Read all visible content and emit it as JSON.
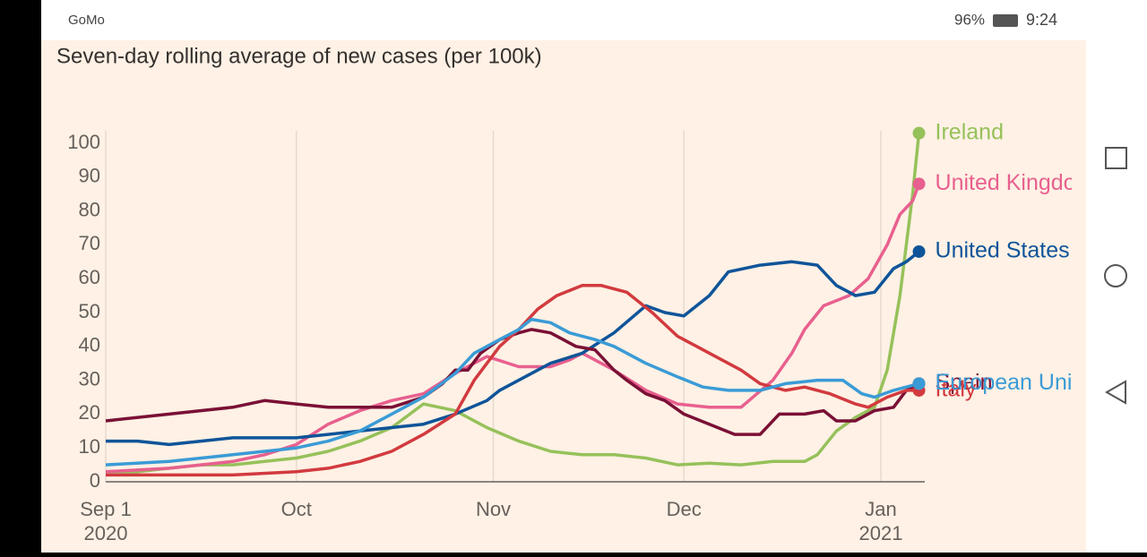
{
  "status_bar": {
    "carrier": "GoMo",
    "battery": "96%",
    "time": "9:24"
  },
  "chart_data": {
    "type": "line",
    "title": "Seven-day rolling average of new cases (per 100k)",
    "xlim": [
      0,
      128
    ],
    "xticks": [
      {
        "value": 0,
        "label": [
          "Sep 1",
          "2020"
        ]
      },
      {
        "value": 30,
        "label": [
          "Oct"
        ]
      },
      {
        "value": 61,
        "label": [
          "Nov"
        ]
      },
      {
        "value": 91,
        "label": [
          "Dec"
        ]
      },
      {
        "value": 122,
        "label": [
          "Jan",
          "2021"
        ]
      }
    ],
    "ylim": [
      0,
      100
    ],
    "yticks": [
      0,
      10,
      20,
      30,
      40,
      50,
      60,
      70,
      80,
      90,
      100
    ],
    "grid": true,
    "series": [
      {
        "name": "Ireland",
        "color": "#96c15a",
        "x": [
          0,
          5,
          10,
          15,
          20,
          25,
          30,
          35,
          40,
          45,
          50,
          55,
          60,
          65,
          70,
          75,
          80,
          85,
          90,
          95,
          100,
          105,
          110,
          112,
          115,
          118,
          121,
          123,
          125,
          127,
          128
        ],
        "values": [
          3,
          3,
          4,
          5,
          5,
          6,
          7,
          9,
          12,
          16,
          23,
          21,
          16,
          12,
          9,
          8,
          8,
          7,
          5,
          5.5,
          5,
          6,
          6,
          8,
          15,
          19,
          22,
          33,
          55,
          85,
          103
        ]
      },
      {
        "name": "United Kingdom",
        "color": "#e8608f",
        "x": [
          0,
          10,
          15,
          20,
          25,
          30,
          35,
          40,
          45,
          50,
          55,
          60,
          65,
          70,
          73,
          75,
          78,
          80,
          85,
          90,
          95,
          100,
          105,
          108,
          110,
          113,
          117,
          120,
          123,
          125,
          127,
          128
        ],
        "values": [
          3,
          4,
          5,
          6,
          8,
          11,
          17,
          21,
          24,
          26,
          32,
          37,
          34,
          34,
          36,
          38,
          35,
          33,
          27,
          23,
          22,
          22,
          30,
          38,
          45,
          52,
          55,
          60,
          70,
          79,
          83,
          88
        ]
      },
      {
        "name": "United States",
        "color": "#0f5499",
        "x": [
          0,
          5,
          10,
          15,
          20,
          25,
          30,
          35,
          40,
          45,
          50,
          55,
          60,
          62,
          65,
          70,
          75,
          80,
          85,
          88,
          91,
          95,
          98,
          103,
          108,
          112,
          115,
          118,
          121,
          124,
          126,
          128
        ],
        "values": [
          12,
          12,
          11,
          12,
          13,
          13,
          13,
          14,
          15,
          16,
          17,
          20,
          24,
          27,
          30,
          35,
          38,
          44,
          52,
          50,
          49,
          55,
          62,
          64,
          65,
          64,
          58,
          55,
          56,
          63,
          65,
          68
        ]
      },
      {
        "name": "Spain",
        "color": "#7a1036",
        "x": [
          0,
          10,
          20,
          25,
          30,
          35,
          40,
          45,
          50,
          53,
          55,
          57,
          59,
          62,
          65,
          67,
          70,
          72,
          74,
          77,
          80,
          82,
          85,
          88,
          91,
          95,
          99,
          103,
          106,
          110,
          113,
          115,
          118,
          121,
          124,
          126,
          128
        ],
        "values": [
          18,
          20,
          22,
          24,
          23,
          22,
          22,
          22,
          25,
          29,
          33,
          33,
          38,
          42,
          44,
          45,
          44,
          42,
          40,
          39,
          33,
          30,
          26,
          24,
          20,
          17,
          14,
          14,
          20,
          20,
          21,
          18,
          18,
          21,
          22,
          27,
          29
        ]
      },
      {
        "name": "Italy",
        "color": "#d23a3f",
        "x": [
          0,
          20,
          30,
          35,
          40,
          45,
          50,
          55,
          58,
          62,
          65,
          68,
          71,
          75,
          78,
          82,
          86,
          90,
          93,
          97,
          100,
          103,
          107,
          110,
          114,
          118,
          120,
          123,
          126,
          128
        ],
        "values": [
          2,
          2,
          3,
          4,
          6,
          9,
          14,
          20,
          30,
          40,
          45,
          51,
          55,
          58,
          58,
          56,
          50,
          43,
          40,
          36,
          33,
          29,
          27,
          28,
          26,
          23,
          22,
          25,
          27,
          27
        ]
      },
      {
        "name": "European Union",
        "color": "#3a9bd6",
        "x": [
          0,
          10,
          20,
          30,
          35,
          40,
          45,
          50,
          55,
          58,
          62,
          65,
          67,
          70,
          73,
          77,
          80,
          85,
          90,
          94,
          98,
          103,
          107,
          112,
          116,
          119,
          121,
          124,
          128
        ],
        "values": [
          5,
          6,
          8,
          10,
          12,
          15,
          20,
          25,
          32,
          38,
          42,
          45,
          48,
          47,
          44,
          42,
          40,
          35,
          31,
          28,
          27,
          27,
          29,
          30,
          30,
          26,
          25,
          27,
          29
        ]
      }
    ]
  }
}
